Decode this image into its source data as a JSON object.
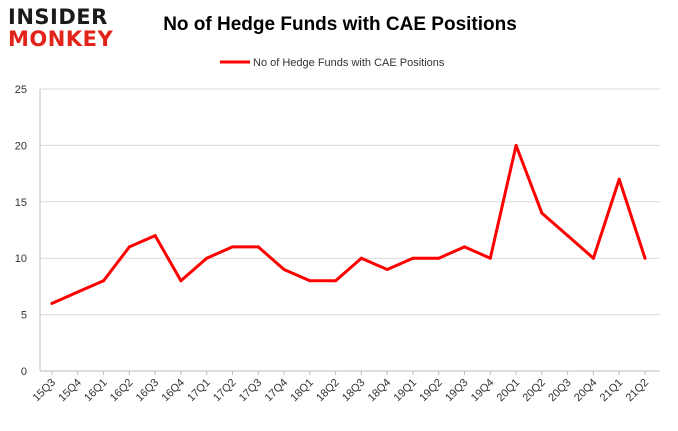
{
  "brand": {
    "logo_top": "INSIDER",
    "logo_bottom": "MONKEY"
  },
  "chart_data": {
    "type": "line",
    "title": "No of Hedge Funds with CAE Positions",
    "xlabel": "",
    "ylabel": "",
    "ylim": [
      0,
      25
    ],
    "yticks": [
      0,
      5,
      10,
      15,
      20,
      25
    ],
    "grid": true,
    "legend_position": "top-center",
    "categories": [
      "15Q3",
      "15Q4",
      "16Q1",
      "16Q2",
      "16Q3",
      "16Q4",
      "17Q1",
      "17Q2",
      "17Q3",
      "17Q4",
      "18Q1",
      "18Q2",
      "18Q3",
      "18Q4",
      "19Q1",
      "19Q2",
      "19Q3",
      "19Q4",
      "20Q1",
      "20Q2",
      "20Q3",
      "20Q4",
      "21Q1",
      "21Q2"
    ],
    "series": [
      {
        "name": "No of Hedge Funds with CAE Positions",
        "color": "#ff0000",
        "values": [
          6,
          7,
          8,
          11,
          12,
          8,
          10,
          11,
          11,
          9,
          8,
          8,
          10,
          9,
          10,
          10,
          11,
          10,
          20,
          14,
          12,
          10,
          17,
          10
        ]
      }
    ]
  }
}
